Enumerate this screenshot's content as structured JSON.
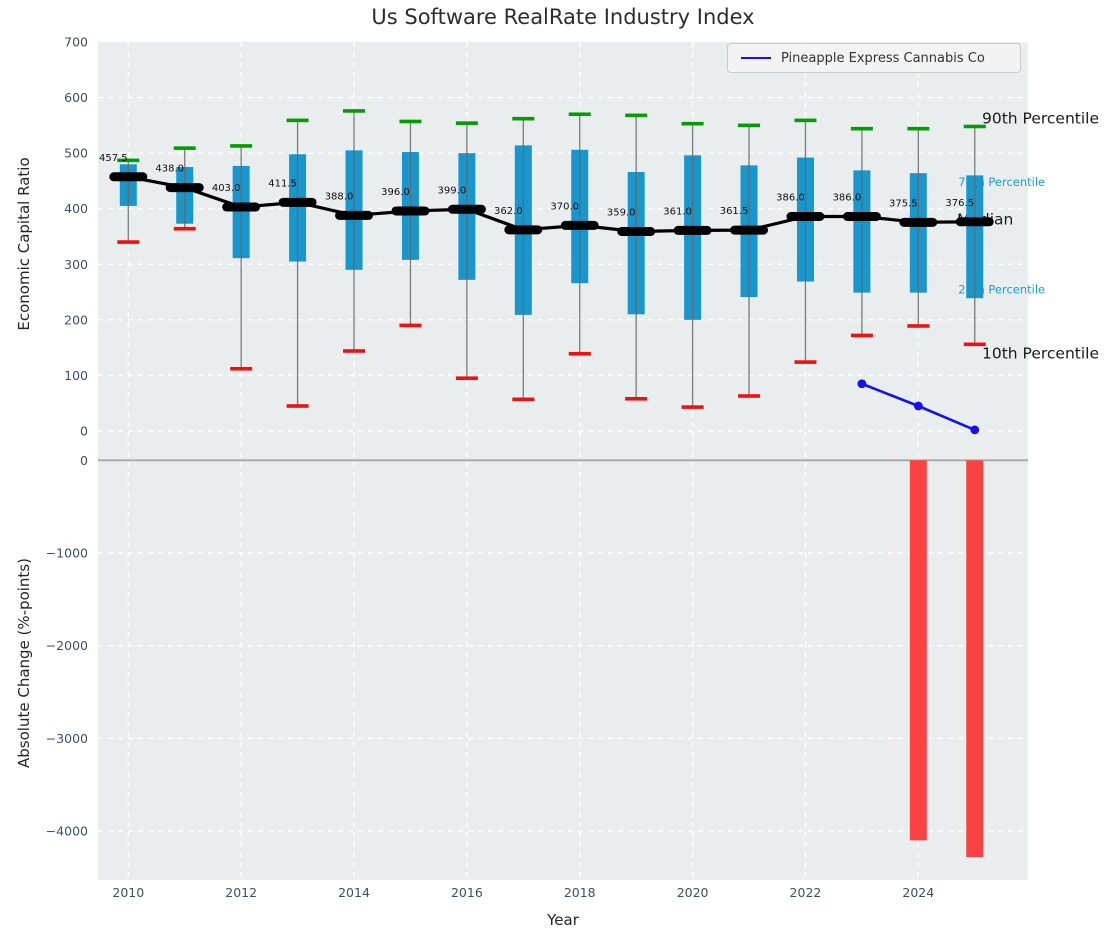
{
  "title": "Us Software RealRate Industry Index",
  "legend": {
    "series_label": "Pineapple Express Cannabis Co"
  },
  "axes": {
    "xlabel": "Year",
    "top_ylabel": "Economic Capital Ratio",
    "bottom_ylabel": "Absolute Change (%-points)",
    "x_ticks": [
      2010,
      2012,
      2014,
      2016,
      2018,
      2020,
      2022,
      2024
    ],
    "top_y_ticks": [
      0,
      100,
      200,
      300,
      400,
      500,
      600,
      700
    ],
    "bottom_y_ticks": [
      0,
      -1000,
      -2000,
      -3000,
      -4000
    ]
  },
  "annotations": {
    "p90": "90th Percentile",
    "p75": "75th Percentile",
    "median": "Median",
    "p25": "25th Percentile",
    "p10": "10th Percentile"
  },
  "colors": {
    "plot_background": "#e9edee",
    "gridline": "#ffffff",
    "box_fill": "#1996cb",
    "whisker": "#666666",
    "cap_90th": "#059b05",
    "cap_10th": "#ee1111",
    "median_line": "#000000",
    "company_line": "#1512e8",
    "change_bar": "#f94343",
    "zero_line": "#a8a8a8",
    "tick_label": "#3e5063",
    "annotation_dark": "#1a1a1a",
    "annotation_blue": "#1d9ed2"
  },
  "chart_data": [
    {
      "type": "box",
      "panel": "top",
      "title": "Us Software RealRate Industry Index",
      "ylabel": "Economic Capital Ratio",
      "ylim": [
        -30,
        700
      ],
      "grid": true,
      "years": [
        2010,
        2011,
        2012,
        2013,
        2014,
        2015,
        2016,
        2017,
        2018,
        2019,
        2020,
        2021,
        2022,
        2023,
        2024,
        2025
      ],
      "p90": [
        487,
        509,
        513,
        559,
        576,
        557,
        554,
        562,
        570,
        568,
        553,
        550,
        559,
        544,
        544,
        548
      ],
      "q3": [
        480,
        475,
        477,
        498,
        505,
        502,
        500,
        514,
        506,
        466,
        496,
        478,
        492,
        469,
        464,
        460
      ],
      "median": [
        457.5,
        438.0,
        403.0,
        411.5,
        388.0,
        396.0,
        399.0,
        362.0,
        370.0,
        359.0,
        361.0,
        361.5,
        386.0,
        386.0,
        375.5,
        376.5
      ],
      "q1": [
        405,
        373,
        311,
        305,
        290,
        308,
        272,
        209,
        266,
        210,
        200,
        241,
        269,
        249,
        249,
        239
      ],
      "p10": [
        340,
        364,
        112,
        45,
        144,
        190,
        95,
        57,
        139,
        58,
        43,
        63,
        124,
        172,
        189,
        156
      ],
      "median_labels": [
        "457.5",
        "438.0",
        "403.0",
        "411.5",
        "388.0",
        "396.0",
        "399.0",
        "362.0",
        "370.0",
        "359.0",
        "361.0",
        "361.5",
        "386.0",
        "386.0",
        "375.5",
        "376.5"
      ],
      "company_series": {
        "name": "Pineapple Express Cannabis Co",
        "x": [
          2023,
          2024,
          2025
        ],
        "y": [
          85,
          45,
          2
        ]
      }
    },
    {
      "type": "bar",
      "panel": "bottom",
      "ylabel": "Absolute Change (%-points)",
      "ylim": [
        160,
        -4520
      ],
      "grid": true,
      "x": [
        2024,
        2025
      ],
      "values": [
        -4100,
        -4280
      ]
    }
  ]
}
